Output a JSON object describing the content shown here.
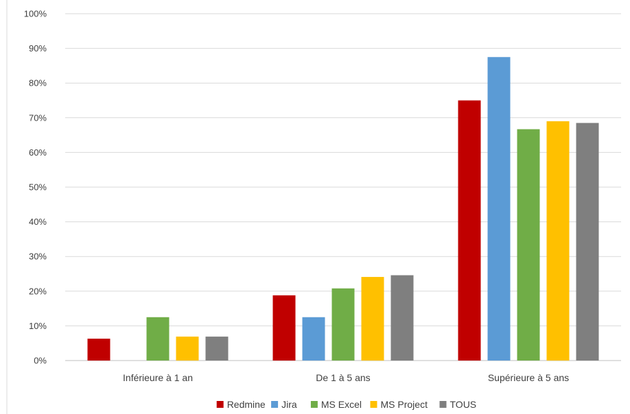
{
  "chart_data": {
    "type": "bar",
    "categories": [
      "Inférieure à 1 an",
      "De 1 à 5 ans",
      "Supérieure à 5 ans"
    ],
    "series": [
      {
        "name": "Redmine",
        "color": "#C00000",
        "values": [
          6.3,
          18.8,
          75.0
        ]
      },
      {
        "name": "Jira",
        "color": "#5B9BD5",
        "values": [
          0,
          12.5,
          87.5
        ]
      },
      {
        "name": "MS Excel",
        "color": "#70AD47",
        "values": [
          12.5,
          20.8,
          66.7
        ]
      },
      {
        "name": "MS Project",
        "color": "#FFC000",
        "values": [
          6.9,
          24.1,
          69.0
        ]
      },
      {
        "name": "TOUS",
        "color": "#7F7F7F",
        "values": [
          6.9,
          24.6,
          68.5
        ]
      }
    ],
    "y_ticks": [
      "0%",
      "10%",
      "20%",
      "30%",
      "40%",
      "50%",
      "60%",
      "70%",
      "80%",
      "90%",
      "100%"
    ],
    "ylim": [
      0,
      100
    ],
    "grid": true,
    "legend_position": "bottom",
    "title": "",
    "xlabel": "",
    "ylabel": ""
  }
}
